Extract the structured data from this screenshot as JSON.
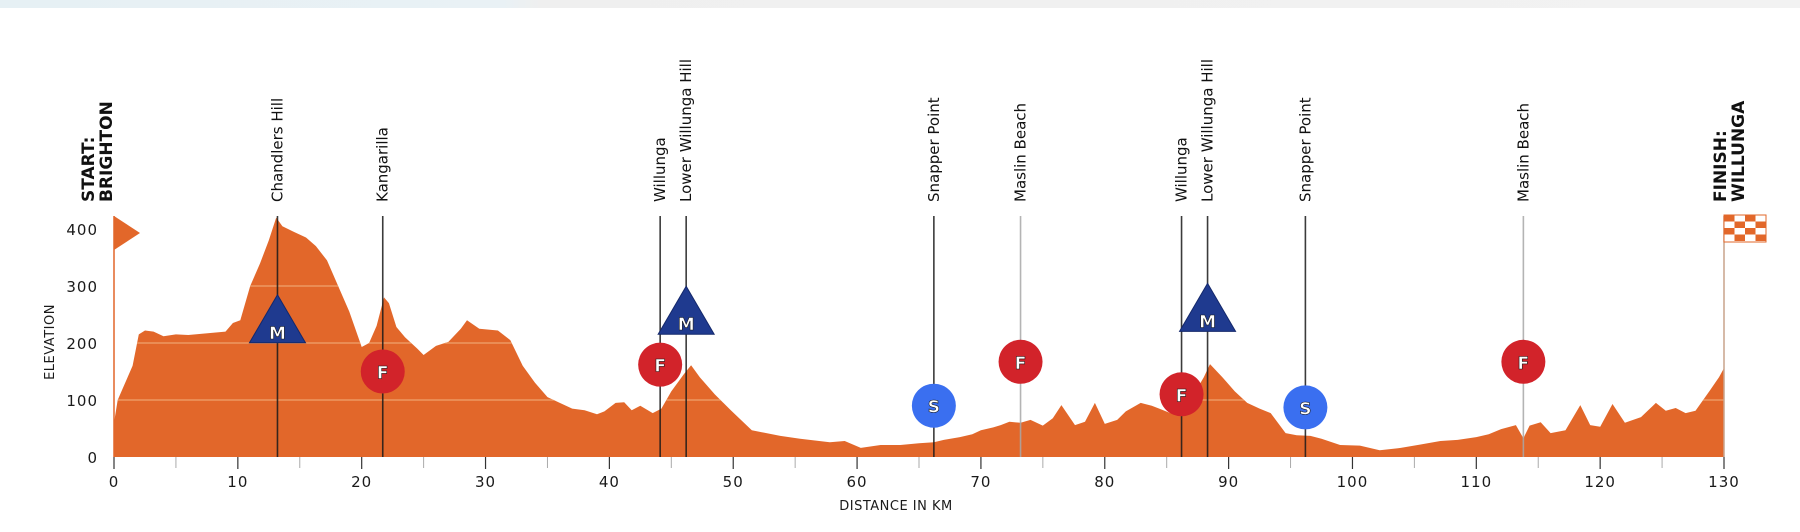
{
  "chart_data": {
    "type": "area",
    "title": "",
    "xlabel": "DISTANCE IN KM",
    "ylabel": "ELEVATION",
    "xlim": [
      0,
      130
    ],
    "ylim": [
      0,
      400
    ],
    "x_ticks": [
      0,
      10,
      20,
      30,
      40,
      50,
      60,
      70,
      80,
      90,
      100,
      110,
      120,
      130
    ],
    "x_minor_ticks": [
      5,
      15,
      25,
      35,
      45,
      55,
      65,
      75,
      85,
      95,
      105,
      115,
      125
    ],
    "y_ticks": [
      0,
      100,
      200,
      300,
      400
    ],
    "grid": "horizontal lines at 100, 200, 300 drawn only inside the filled area",
    "legend": null,
    "colors": {
      "profile_fill": "#e2672a",
      "grid_line": "#f0a36e",
      "mountain_marker": "#1f3a8f",
      "sprint_marker": "#3a6ff0",
      "feed_marker": "#d2232a",
      "flag": "#e2672a",
      "marker_line_dark": "#1a1a1a",
      "marker_line_light": "#a8a8a8"
    },
    "start": {
      "label_line1": "START:",
      "label_line2": "BRIGHTON",
      "km": 0,
      "flag": "triangle-flag"
    },
    "finish": {
      "label_line1": "FINISH:",
      "label_line2": "WILLUNGA",
      "km": 130,
      "flag": "checkered-flag"
    },
    "profile": {
      "x": [
        0,
        0.3,
        0.8,
        1.5,
        2.0,
        2.5,
        3.2,
        4.0,
        5.0,
        6.0,
        7.0,
        8.0,
        9.0,
        9.6,
        10.2,
        11.0,
        11.8,
        12.5,
        13.1,
        13.6,
        14.5,
        15.5,
        16.3,
        17.2,
        18.0,
        19.0,
        20.0,
        20.6,
        21.2,
        21.8,
        22.2,
        22.8,
        23.5,
        24.5,
        25.0,
        26.0,
        27.0,
        28.0,
        28.5,
        29.5,
        31.0,
        32.0,
        33.0,
        34.0,
        35.0,
        36.0,
        37.0,
        38.0,
        39.0,
        39.6,
        40.5,
        41.2,
        41.8,
        42.5,
        43.5,
        44.2,
        45.0,
        46.0,
        46.6,
        47.3,
        48.5,
        49.8,
        51.5,
        53.8,
        55.4,
        57.8,
        59.0,
        60.3,
        61.9,
        63.5,
        65.0,
        66.2,
        67.0,
        68.3,
        69.3,
        70.0,
        71.0,
        71.6,
        72.3,
        73.2,
        74.0,
        75.0,
        75.8,
        76.5,
        77.6,
        78.4,
        79.2,
        80.0,
        81.0,
        81.7,
        82.9,
        83.8,
        84.5,
        85.3,
        86.2,
        87.2,
        88.0,
        88.5,
        89.5,
        90.5,
        91.5,
        92.5,
        93.4,
        94.6,
        95.5,
        96.6,
        97.5,
        99.0,
        100.6,
        102.2,
        103.9,
        105.5,
        107.1,
        108.5,
        110.0,
        111.0,
        112.0,
        113.2,
        113.8,
        114.3,
        115.2,
        116.0,
        117.2,
        118.4,
        119.2,
        120.0,
        121.0,
        122.0,
        123.3,
        124.5,
        125.3,
        126.1,
        126.9,
        127.7,
        128.9,
        129.6,
        130.0
      ],
      "elevation": [
        60,
        100,
        125,
        160,
        215,
        222,
        220,
        212,
        215,
        214,
        216,
        218,
        220,
        235,
        240,
        300,
        340,
        380,
        420,
        405,
        395,
        385,
        370,
        345,
        305,
        255,
        193,
        200,
        230,
        280,
        270,
        228,
        210,
        190,
        179,
        195,
        202,
        225,
        240,
        225,
        222,
        205,
        160,
        130,
        105,
        95,
        85,
        82,
        75,
        80,
        95,
        96,
        82,
        90,
        77,
        85,
        115,
        145,
        161,
        140,
        110,
        82,
        47,
        37,
        32,
        26,
        28,
        16,
        21,
        21,
        24,
        26,
        30,
        35,
        40,
        47,
        52,
        56,
        62,
        60,
        65,
        55,
        68,
        91,
        56,
        62,
        95,
        58,
        65,
        80,
        95,
        90,
        84,
        77,
        85,
        110,
        140,
        163,
        140,
        115,
        95,
        85,
        77,
        42,
        38,
        37,
        32,
        21,
        20,
        12,
        16,
        22,
        28,
        30,
        35,
        40,
        49,
        56,
        33,
        55,
        61,
        42,
        47,
        91,
        56,
        53,
        93,
        60,
        70,
        95,
        81,
        86,
        77,
        81,
        118,
        140,
        156
      ]
    },
    "waypoints": [
      {
        "name": "Chandlers Hill",
        "km": 13.2,
        "marker": "M",
        "marker_type": "mountain",
        "marker_elev": 225,
        "line": "dark"
      },
      {
        "name": "Kangarilla",
        "km": 21.7,
        "marker": "F",
        "marker_type": "feed",
        "marker_elev": 150,
        "line": "dark"
      },
      {
        "name": "Willunga",
        "km": 44.1,
        "marker": "F",
        "marker_type": "feed",
        "marker_elev": 162,
        "line": "dark"
      },
      {
        "name": "Lower Willunga Hill",
        "km": 46.2,
        "marker": "M",
        "marker_type": "mountain",
        "marker_elev": 240,
        "line": "dark"
      },
      {
        "name": "Snapper Point",
        "km": 66.2,
        "marker": "S",
        "marker_type": "sprint",
        "marker_elev": 90,
        "line": "dark"
      },
      {
        "name": "Maslin Beach",
        "km": 73.2,
        "marker": "F",
        "marker_type": "feed",
        "marker_elev": 167,
        "line": "light"
      },
      {
        "name": "Willunga",
        "km": 86.2,
        "marker": "F",
        "marker_type": "feed",
        "marker_elev": 110,
        "line": "dark"
      },
      {
        "name": "Lower Willunga Hill",
        "km": 88.3,
        "marker": "M",
        "marker_type": "mountain",
        "marker_elev": 245,
        "line": "dark"
      },
      {
        "name": "Snapper Point",
        "km": 96.2,
        "marker": "S",
        "marker_type": "sprint",
        "marker_elev": 87,
        "line": "dark"
      },
      {
        "name": "Maslin Beach",
        "km": 113.8,
        "marker": "F",
        "marker_type": "feed",
        "marker_elev": 167,
        "line": "light"
      }
    ]
  }
}
